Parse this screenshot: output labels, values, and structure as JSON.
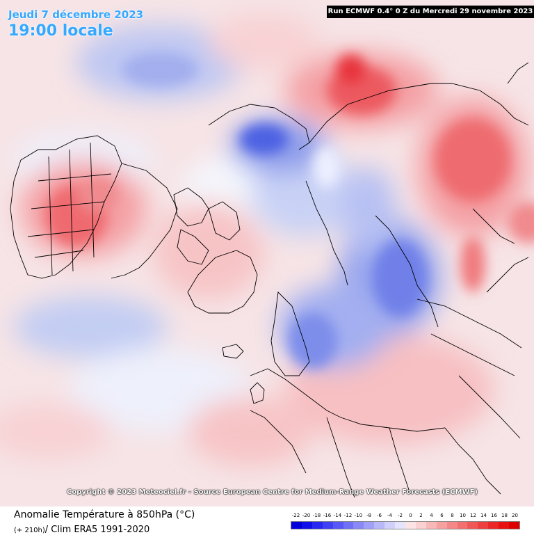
{
  "header": {
    "date": "Jeudi 7 décembre 2023",
    "time": "19:00 locale"
  },
  "run_info": "Run ECMWF 0.4° 0 Z du Mercredi 29 novembre 2023",
  "copyright": "Copyright © 2023 Meteociel.fr - Source European Centre for Medium-Range Weather Forecasts (ECMWF)",
  "footer": {
    "title": "Anomalie Température à 850hPa (°C)",
    "lead": "(+ 210h)",
    "subtitle": "/ Clim ERA5 1991-2020"
  },
  "legend": {
    "labels": [
      "-22",
      "-20",
      "-18",
      "-16",
      "-14",
      "-12",
      "-10",
      "-8",
      "-6",
      "-4",
      "-2",
      "0",
      "2",
      "4",
      "6",
      "8",
      "10",
      "12",
      "14",
      "16",
      "18",
      "20"
    ],
    "colors": [
      "#0000dd",
      "#1010e8",
      "#2828f0",
      "#4040f4",
      "#5858f6",
      "#7070f6",
      "#8888f6",
      "#a0a0f8",
      "#b8b8f8",
      "#d0d0fa",
      "#e4e4fc",
      "#fce4e4",
      "#fad0d0",
      "#f8b8b8",
      "#f6a0a0",
      "#f48888",
      "#f27070",
      "#f05858",
      "#ee4040",
      "#ea2828",
      "#e81010",
      "#dd0000"
    ]
  },
  "map": {
    "background": "#f6e4e6",
    "warm_anomaly": "#e8242a",
    "cold_anomaly": "#2438e8"
  }
}
